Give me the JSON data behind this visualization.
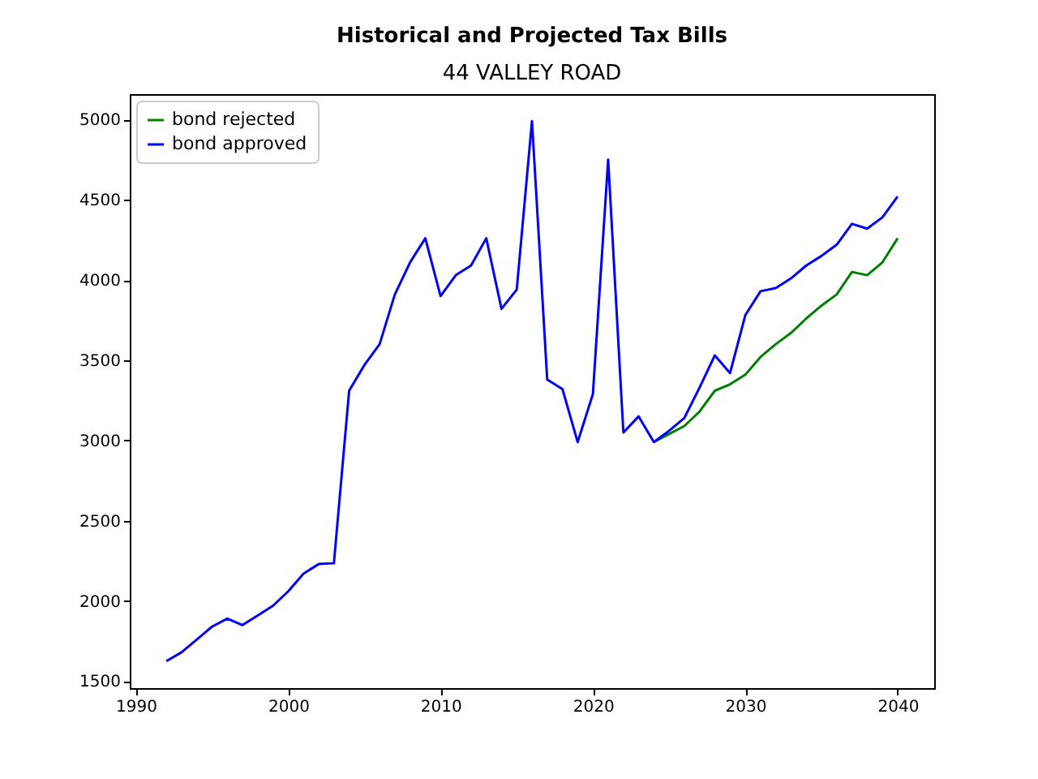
{
  "chart_data": {
    "type": "line",
    "title": "Historical and Projected Tax Bills",
    "subtitle": "44 VALLEY ROAD",
    "series": [
      {
        "name": "bond rejected",
        "color": "#008000",
        "x": [
          2024,
          2025,
          2026,
          2027,
          2028,
          2029,
          2030,
          2031,
          2032,
          2033,
          2034,
          2035,
          2036,
          2037,
          2038,
          2039,
          2040
        ],
        "values": [
          2990,
          3040,
          3090,
          3180,
          3310,
          3350,
          3410,
          3520,
          3600,
          3670,
          3760,
          3840,
          3910,
          4050,
          4030,
          4110,
          4260
        ]
      },
      {
        "name": "bond approved",
        "color": "#0000ff",
        "x": [
          1992,
          1993,
          1994,
          1995,
          1996,
          1997,
          1998,
          1999,
          2000,
          2001,
          2002,
          2003,
          2004,
          2005,
          2006,
          2007,
          2008,
          2009,
          2010,
          2011,
          2012,
          2013,
          2014,
          2015,
          2016,
          2017,
          2018,
          2019,
          2020,
          2021,
          2022,
          2023,
          2024,
          2025,
          2026,
          2027,
          2028,
          2029,
          2030,
          2031,
          2032,
          2033,
          2034,
          2035,
          2036,
          2037,
          2038,
          2039,
          2040
        ],
        "values": [
          1625,
          1680,
          1760,
          1840,
          1890,
          1850,
          1910,
          1970,
          2060,
          2170,
          2230,
          2235,
          3310,
          3470,
          3600,
          3910,
          4110,
          4260,
          3900,
          4030,
          4090,
          4260,
          3820,
          3940,
          4990,
          3380,
          3320,
          2990,
          3290,
          4750,
          3050,
          3150,
          2990,
          3060,
          3140,
          3330,
          3530,
          3420,
          3780,
          3930,
          3950,
          4010,
          4090,
          4150,
          4220,
          4350,
          4320,
          4390,
          4520
        ]
      }
    ],
    "xlim": [
      1989.6,
      2042.4
    ],
    "xticks": [
      1990,
      2000,
      2010,
      2020,
      2030,
      2040
    ],
    "ylim": [
      1457,
      5158
    ],
    "yticks": [
      1500,
      2000,
      2500,
      3000,
      3500,
      4000,
      4500,
      5000
    ],
    "legend": "top left"
  }
}
